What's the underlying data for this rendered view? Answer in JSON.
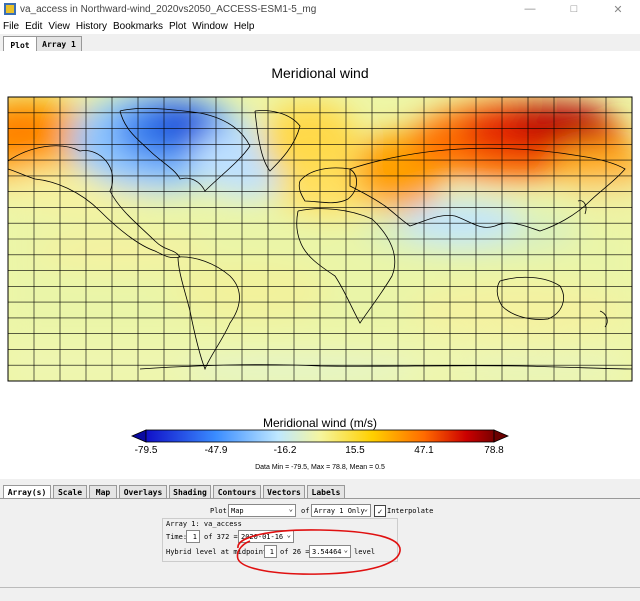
{
  "window": {
    "title": "va_access in Northward-wind_2020vs2050_ACCESS-ESM1-5_mg"
  },
  "menu": [
    "File",
    "Edit",
    "View",
    "History",
    "Bookmarks",
    "Plot",
    "Window",
    "Help"
  ],
  "top_tabs": [
    "Plot",
    "Array 1"
  ],
  "plot": {
    "title": "Meridional wind",
    "colorbar_title": "Meridional wind (m/s)",
    "colorbar_ticks": [
      "-79.5",
      "-47.9",
      "-16.2",
      "15.5",
      "47.1",
      "78.8"
    ],
    "stats": "Data Min = -79.5, Max = 78.8, Mean = 0.5"
  },
  "sub_tabs": [
    "Array(s)",
    "Scale",
    "Map",
    "Overlays",
    "Shading",
    "Contours",
    "Vectors",
    "Labels"
  ],
  "controls": {
    "plot_label": "Plot",
    "plot_type": "Map",
    "of_label": "of",
    "array_select": "Array 1 Only",
    "interpolate_label": "Interpolate",
    "interpolate_checked": true,
    "array_label": "Array 1: va_access",
    "time_label": "Time:",
    "time_index": "1",
    "time_of": "of 372 =",
    "time_value": "2020-01-16",
    "level_label": "Hybrid level at midpoints:",
    "level_index": "1",
    "level_of": "of 26 =",
    "level_value": "3.54464",
    "level_unit": "level"
  },
  "colors": {
    "annotation": "#e01010",
    "accent": "#1e5ab4"
  }
}
